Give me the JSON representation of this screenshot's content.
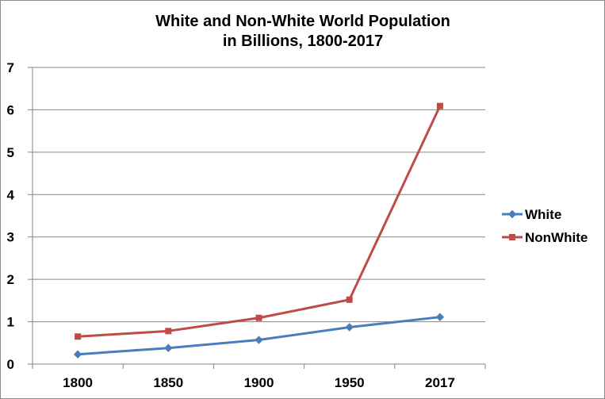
{
  "chart_data": {
    "type": "line",
    "title_lines": [
      "White and Non-White World Population",
      "in Billions, 1800-2017"
    ],
    "xlabel": "",
    "ylabel": "",
    "categories": [
      "1800",
      "1850",
      "1900",
      "1950",
      "2017"
    ],
    "ylim": [
      0,
      7
    ],
    "yticks": [
      "0",
      "1",
      "2",
      "3",
      "4",
      "5",
      "6",
      "7"
    ],
    "grid": true,
    "legend_position": "right",
    "series": [
      {
        "name": "White",
        "color": "#4a7ebb",
        "marker": "diamond",
        "values": [
          0.23,
          0.38,
          0.57,
          0.87,
          1.11
        ]
      },
      {
        "name": "NonWhite",
        "color": "#be4b48",
        "marker": "square",
        "values": [
          0.65,
          0.78,
          1.09,
          1.52,
          6.09
        ]
      }
    ]
  }
}
